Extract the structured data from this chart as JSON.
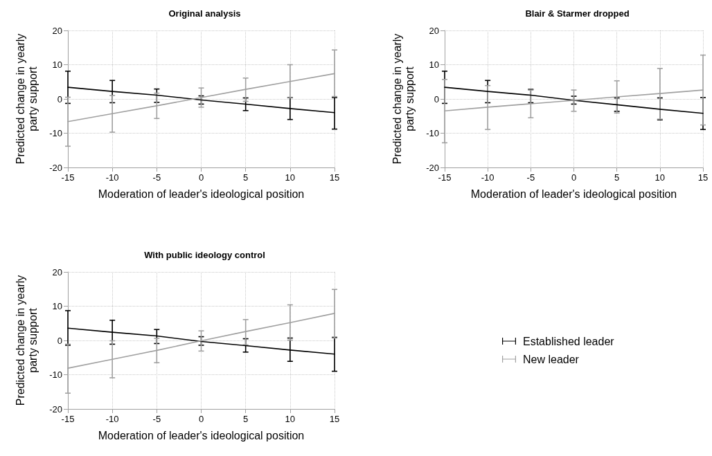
{
  "chart_data": [
    {
      "type": "line",
      "title": "Original analysis",
      "xlabel": "Moderation of leader's ideological position",
      "ylabel": "Predicted change in yearly\nparty support",
      "x": [
        -15,
        -10,
        -5,
        0,
        5,
        10,
        15
      ],
      "xlim": [
        -15,
        15
      ],
      "xticks": [
        -15,
        -10,
        -5,
        0,
        5,
        10,
        15
      ],
      "ylim": [
        -20,
        20
      ],
      "yticks": [
        -20,
        -10,
        0,
        10,
        20
      ],
      "grid": true,
      "marker": "none",
      "line_style": "solid",
      "series": [
        {
          "color": "#000000",
          "values": [
            3.4,
            2.2,
            1.1,
            -0.3,
            -1.5,
            -2.8,
            -4.0
          ],
          "errors": [
            [
              -1.3,
              8.1
            ],
            [
              -1.1,
              5.4
            ],
            [
              -1.0,
              2.9
            ],
            [
              -1.5,
              0.9
            ],
            [
              -3.4,
              0.3
            ],
            [
              -6.0,
              0.4
            ],
            [
              -8.8,
              0.4
            ]
          ]
        },
        {
          "color": "#a0a0a0",
          "values": [
            -6.6,
            -4.3,
            -2.0,
            0.4,
            2.8,
            5.1,
            7.4
          ],
          "errors": [
            [
              -13.8,
              0.5
            ],
            [
              -9.7,
              1.0
            ],
            [
              -5.7,
              1.7
            ],
            [
              -2.4,
              3.2
            ],
            [
              -0.7,
              6.1
            ],
            [
              0.3,
              10.0
            ],
            [
              0.7,
              14.3
            ]
          ]
        }
      ]
    },
    {
      "type": "line",
      "title": "Blair & Starmer dropped",
      "xlabel": "Moderation of leader's ideological position",
      "ylabel": "Predicted change in yearly\nparty support",
      "x": [
        -15,
        -10,
        -5,
        0,
        5,
        10,
        15
      ],
      "xlim": [
        -15,
        15
      ],
      "xticks": [
        -15,
        -10,
        -5,
        0,
        5,
        10,
        15
      ],
      "ylim": [
        -20,
        20
      ],
      "yticks": [
        -20,
        -10,
        0,
        10,
        20
      ],
      "grid": true,
      "marker": "none",
      "line_style": "solid",
      "series": [
        {
          "color": "#000000",
          "values": [
            3.4,
            2.2,
            1.1,
            -0.4,
            -1.7,
            -3.0,
            -4.2
          ],
          "errors": [
            [
              -1.3,
              8.1
            ],
            [
              -1.1,
              5.4
            ],
            [
              -1.1,
              2.8
            ],
            [
              -1.5,
              0.8
            ],
            [
              -3.6,
              0.3
            ],
            [
              -6.1,
              0.3
            ],
            [
              -8.9,
              0.4
            ]
          ]
        },
        {
          "color": "#a0a0a0",
          "values": [
            -3.5,
            -2.4,
            -1.4,
            -0.4,
            0.6,
            1.6,
            2.6
          ],
          "errors": [
            [
              -12.8,
              5.7
            ],
            [
              -8.9,
              3.9
            ],
            [
              -5.5,
              2.6
            ],
            [
              -3.6,
              2.6
            ],
            [
              -4.1,
              5.3
            ],
            [
              -5.9,
              8.9
            ],
            [
              -7.6,
              12.8
            ]
          ]
        }
      ]
    },
    {
      "type": "line",
      "title": "With public ideology control",
      "xlabel": "Moderation of leader's ideological position",
      "ylabel": "Predicted change in yearly\nparty support",
      "x": [
        -15,
        -10,
        -5,
        0,
        5,
        10,
        15
      ],
      "xlim": [
        -15,
        15
      ],
      "xticks": [
        -15,
        -10,
        -5,
        0,
        5,
        10,
        15
      ],
      "ylim": [
        -20,
        20
      ],
      "yticks": [
        -20,
        -10,
        0,
        10,
        20
      ],
      "grid": true,
      "marker": "none",
      "line_style": "solid",
      "legend": "right",
      "series": [
        {
          "name": "Established leader",
          "color": "#000000",
          "values": [
            3.6,
            2.4,
            1.3,
            -0.3,
            -1.5,
            -2.8,
            -4.0
          ],
          "errors": [
            [
              -1.4,
              8.7
            ],
            [
              -1.1,
              5.9
            ],
            [
              -0.9,
              3.2
            ],
            [
              -1.4,
              1.1
            ],
            [
              -3.4,
              0.5
            ],
            [
              -6.1,
              0.7
            ],
            [
              -9.0,
              0.9
            ]
          ]
        },
        {
          "name": "New leader",
          "color": "#a0a0a0",
          "values": [
            -8.1,
            -5.5,
            -2.9,
            -0.1,
            2.6,
            5.2,
            7.9
          ],
          "errors": [
            [
              -15.4,
              -1.1
            ],
            [
              -10.9,
              -0.1
            ],
            [
              -6.5,
              0.6
            ],
            [
              -3.1,
              2.8
            ],
            [
              -1.3,
              6.1
            ],
            [
              0.1,
              10.4
            ],
            [
              0.7,
              14.9
            ]
          ]
        }
      ]
    }
  ]
}
